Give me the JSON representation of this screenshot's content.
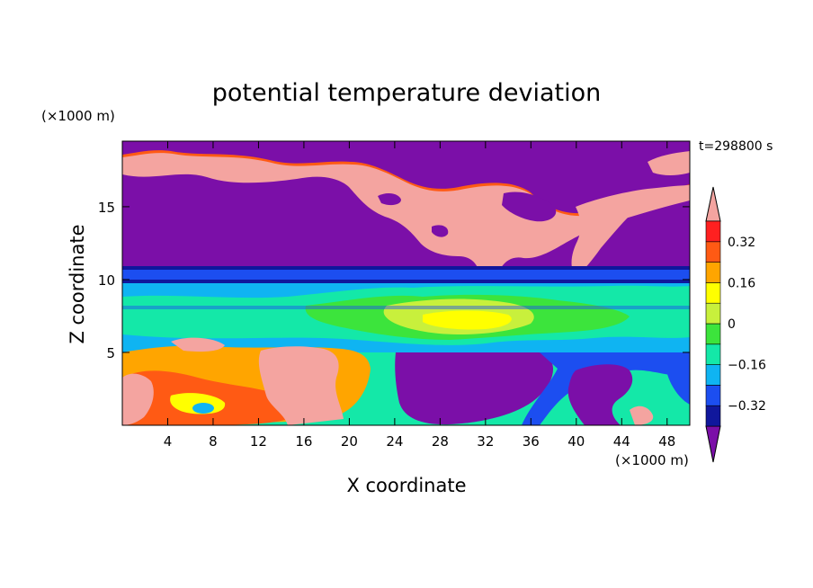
{
  "chart_data": {
    "type": "heatmap",
    "title": "potential temperature deviation",
    "xlabel": "X coordinate",
    "ylabel": "Z coordinate",
    "x_unit": "(×1000 m)",
    "y_unit": "(×1000 m)",
    "time_label": "t=298800 s",
    "xlim": [
      0,
      50
    ],
    "ylim": [
      0,
      19.5
    ],
    "x_ticks": [
      "4",
      "8",
      "12",
      "16",
      "20",
      "24",
      "28",
      "32",
      "36",
      "40",
      "44",
      "48"
    ],
    "y_ticks": [
      "5",
      "10",
      "15"
    ],
    "colorbar": {
      "levels": [
        -0.4,
        -0.32,
        -0.24,
        -0.16,
        -0.08,
        0,
        0.08,
        0.16,
        0.24,
        0.32,
        0.4
      ],
      "colors": [
        "#7b0fa8",
        "#10179c",
        "#1c4ef0",
        "#0fb4f2",
        "#14e8a8",
        "#3ce43c",
        "#c8f03c",
        "#ffff00",
        "#ffa500",
        "#ff5a14",
        "#ff2020",
        "#f4a4a0"
      ],
      "labels": [
        "0.32",
        "0.16",
        "0",
        "−0.16",
        "−0.32"
      ],
      "extend": "both"
    },
    "grid": false
  }
}
